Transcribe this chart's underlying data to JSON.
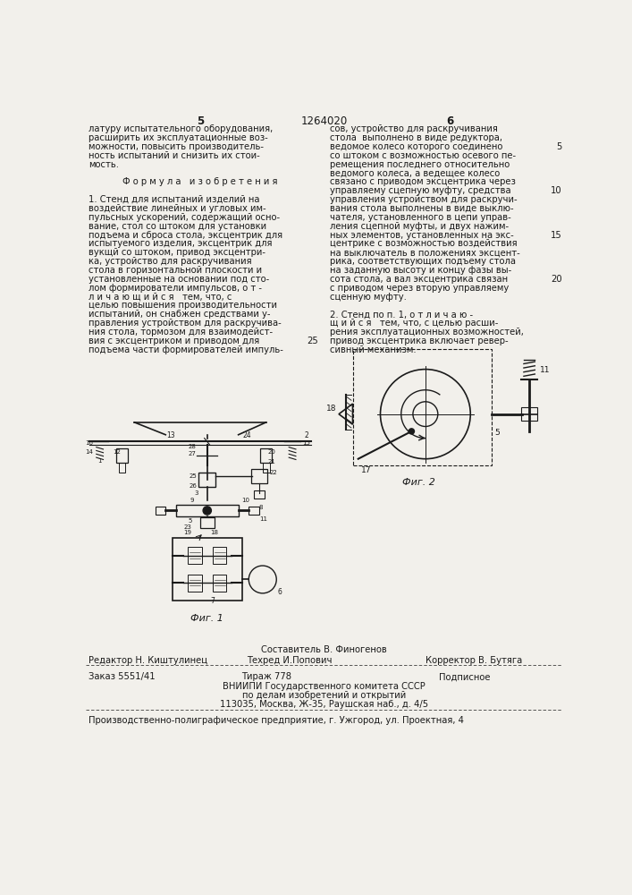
{
  "page_number_left": "5",
  "patent_number": "1264020",
  "page_number_right": "6",
  "background_color": "#f2f0eb",
  "text_color": "#1a1a1a",
  "left_column_text": [
    "латуру испытательного оборудования,",
    "расширить их эксплуатационные воз-",
    "можности, повысить производитель-",
    "ность испытаний и снизить их стои-",
    "мость.",
    "",
    "Ф о р м у л а   и з о б р е т е н и я",
    "",
    "1. Стенд для испытаний изделий на",
    "воздействие линейных и угловых им-",
    "пульсных ускорений, содержащий осно-",
    "вание, стол со штоком для установки",
    "подъема и сброса стола, эксцентрик для",
    "испытуемого изделия, эксцентрик для",
    "вукщй со штоком, привод эксцентри-",
    "ка, устройство для раскручивания",
    "стола в горизонтальной плоскости и",
    "установленные на основании под сто-",
    "лом формирователи импульсов, о т -",
    "л и ч а ю щ и й с я   тем, что, с",
    "целью повышения производительности",
    "испытаний, он снабжен средствами у-",
    "правления устройством для раскручива-",
    "ния стола, тормозом для взаимодейст-",
    "вия с эксцентриком и приводом для",
    "подъема части формирователей импуль-"
  ],
  "right_col_line_num": "25",
  "right_column_text": [
    "сов, устройство для раскручивания",
    "стола  выполнено в виде редуктора,",
    "ведомое колесо которого соединено",
    "со штоком с возможностью осевого пе-",
    "ремещения последнего относительно",
    "ведомого колеса, а ведещее колесо",
    "связано с приводом эксцентрика через",
    "управляему сцепную муфту, средства",
    "управления устройством для раскручи-",
    "вания стола выполнены в виде выклю-",
    "чателя, установленного в цепи управ-",
    "ления сцепной муфты, и двух нажим-",
    "ных элементов, установленных на экс-",
    "центрике с возможностью воздействия",
    "на выключатель в положениях эксцент-",
    "рика, соответствующих подъему стола",
    "на заданную высоту и концу фазы вы-",
    "сота стола, а вал эксцентрика связан",
    "с приводом через вторую управляему",
    "сценную муфту.",
    "",
    "2. Стенд по п. 1, о т л и ч а ю -",
    "щ и й с я   тем, что, с целью расши-",
    "рения эксплуатационных возможностей,",
    "привод эксцентрика включает ревер-",
    "сивный механизм."
  ],
  "fig1_label": "Фиг. 1",
  "fig2_label": "Фиг. 2",
  "footer_composer": "Составитель В. Финогенов",
  "footer_editor": "Редактор Н. Киштулинец",
  "footer_tech": "Техред И.Попович",
  "footer_corrector": "Корректор В. Бутяга",
  "footer_order": "Заказ 5551/41",
  "footer_tirazh": "Тираж 778",
  "footer_podpisnoe": "Подписное",
  "footer_vniip1": "ВНИИПИ Государственного комитета СССР",
  "footer_vniip2": "по делам изобретений и открытий",
  "footer_vniip3": "113035, Москва, Ж-35, Раушская наб., д. 4/5",
  "footer_factory": "Производственно-полиграфическое предприятие, г. Ужгород, ул. Проектная, 4"
}
